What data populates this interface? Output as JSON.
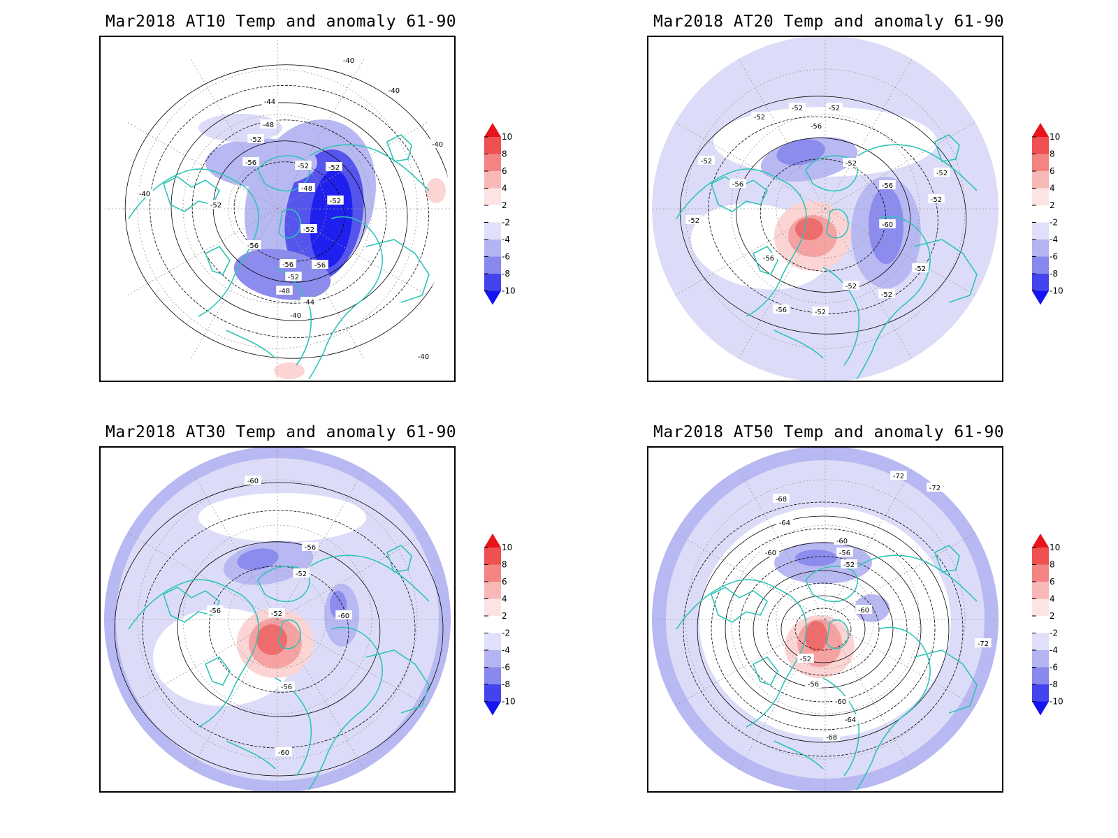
{
  "figure": {
    "panels": [
      {
        "id": "at10",
        "title": "Mar2018 AT10 Temp and anomaly 61-90",
        "contour_labels": [
          "-40",
          "-40",
          "-40",
          "-40",
          "-44",
          "-48",
          "-52",
          "-56",
          "-52",
          "-52",
          "-48",
          "-52",
          "-52",
          "-56",
          "-56",
          "-56",
          "-52",
          "-48",
          "-44",
          "-40",
          "-52",
          "-40"
        ]
      },
      {
        "id": "at20",
        "title": "Mar2018 AT20 Temp and anomaly 61-90",
        "contour_labels": [
          "-52",
          "-52",
          "-52",
          "-56",
          "-52",
          "-52",
          "-56",
          "-56",
          "-52",
          "-52",
          "-60",
          "-52",
          "-56",
          "-52",
          "-52",
          "-52",
          "-56",
          "-52"
        ]
      },
      {
        "id": "at30",
        "title": "Mar2018 AT30 Temp and anomaly 61-90",
        "contour_labels": [
          "-60",
          "-56",
          "-52",
          "-56",
          "-52",
          "-60",
          "-56",
          "-60"
        ]
      },
      {
        "id": "at50",
        "title": "Mar2018 AT50 Temp and anomaly 61-90",
        "contour_labels": [
          "-72",
          "-72",
          "-68",
          "-64",
          "-60",
          "-60",
          "-56",
          "-52",
          "-60",
          "-52",
          "-56",
          "-60",
          "-64",
          "-68",
          "-72"
        ]
      }
    ],
    "colorbar": {
      "labels": [
        "10",
        "8",
        "6",
        "4",
        "2",
        "-2",
        "-4",
        "-6",
        "-8",
        "-10"
      ],
      "colors": [
        "#e8141c",
        "#ef5050",
        "#f48484",
        "#f9b8b8",
        "#fde4e4",
        "#ffffff",
        "#e0e0fa",
        "#b4b4f2",
        "#8888ee",
        "#4444ee",
        "#1414f0"
      ]
    },
    "map_colors": {
      "coastline": "#2ec4b6",
      "contour": "#000000",
      "grid": "#9a9a9a"
    }
  }
}
